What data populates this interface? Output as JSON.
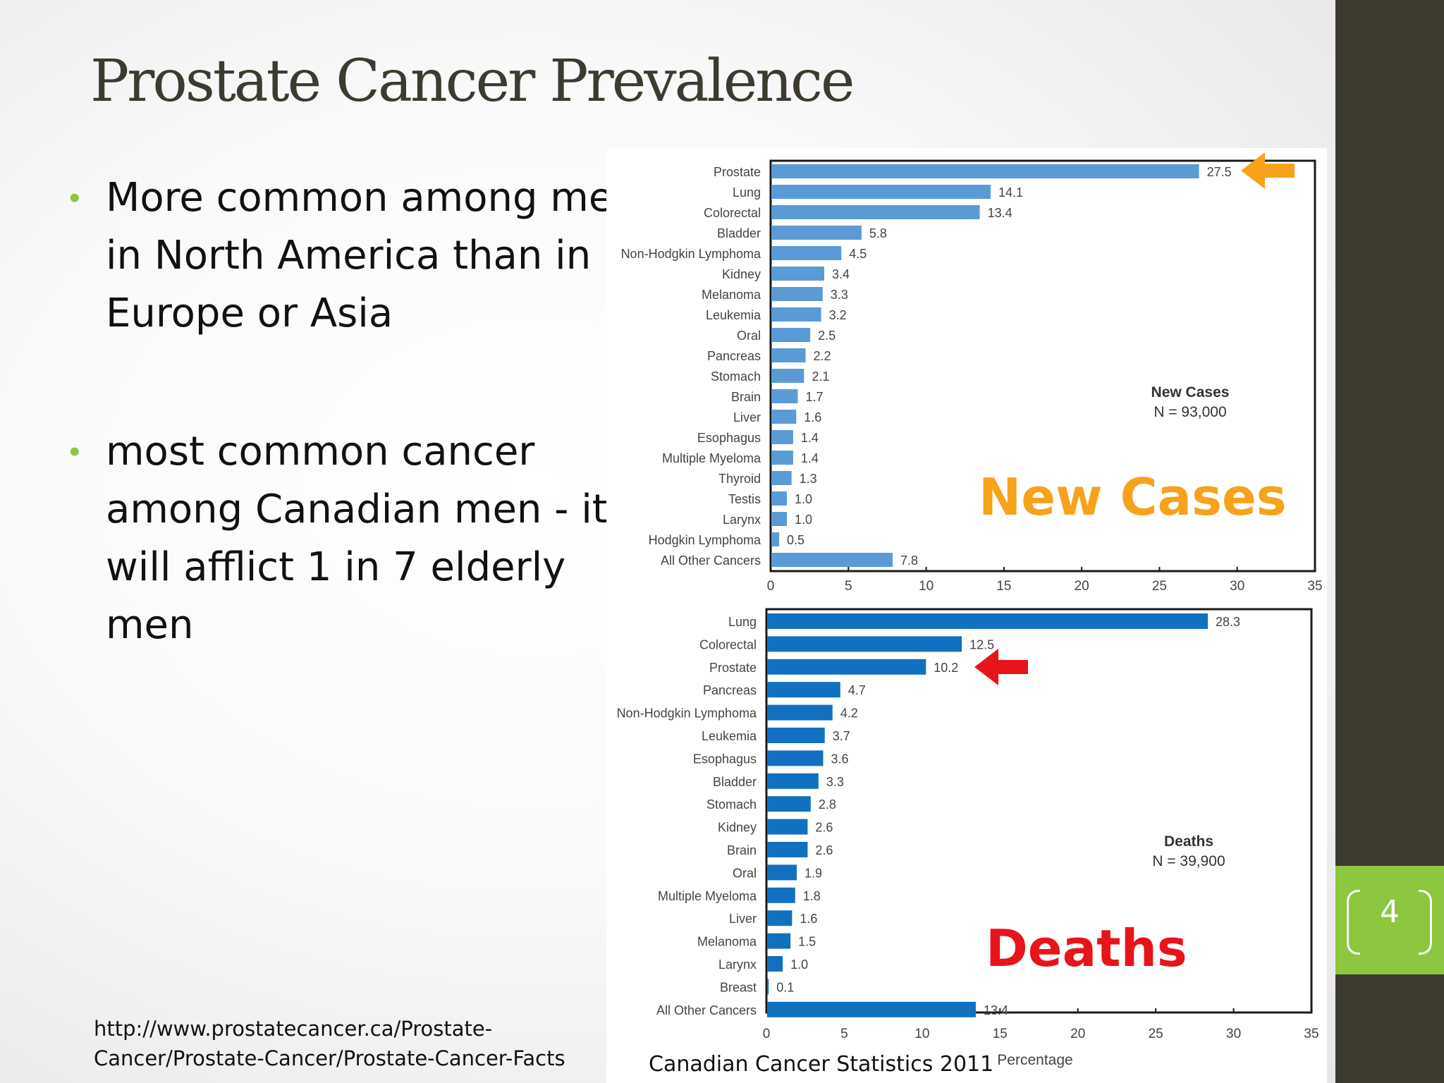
{
  "slide": {
    "title": "Prostate Cancer Prevalence",
    "bullets": [
      "More common among men in North America than in Europe or Asia",
      "most common cancer among Canadian men - it will afflict 1 in 7 elderly men"
    ],
    "source_url": "http://www.prostatecancer.ca/Prostate-Cancer/Prostate-Cancer/Prostate-Cancer-Facts",
    "caption": "Canadian Cancer Statistics 2011",
    "page_number": "4",
    "colors": {
      "accent_green": "#8dc63f",
      "sidebar": "#3d3a2f",
      "title": "#3d3a2f",
      "orange": "#f7a21b",
      "red": "#e8141b",
      "bar_top": "#5b9bd5",
      "bar_bottom": "#1270c0"
    },
    "icons": [
      "orange-arrow-icon",
      "red-arrow-icon"
    ]
  },
  "chart_data": [
    {
      "type": "bar",
      "orientation": "horizontal",
      "categories": [
        "Prostate",
        "Lung",
        "Colorectal",
        "Bladder",
        "Non-Hodgkin Lymphoma",
        "Kidney",
        "Melanoma",
        "Leukemia",
        "Oral",
        "Pancreas",
        "Stomach",
        "Brain",
        "Liver",
        "Esophagus",
        "Multiple Myeloma",
        "Thyroid",
        "Testis",
        "Larynx",
        "Hodgkin Lymphoma",
        "All Other Cancers"
      ],
      "values": [
        27.5,
        14.1,
        13.4,
        5.8,
        4.5,
        3.4,
        3.3,
        3.2,
        2.5,
        2.2,
        2.1,
        1.7,
        1.6,
        1.4,
        1.4,
        1.3,
        1.0,
        1.0,
        0.5,
        7.8
      ],
      "value_labels": [
        "27.5",
        "14.1",
        "13.4",
        "5.8",
        "4.5",
        "3.4",
        "3.3",
        "3.2",
        "2.5",
        "2.2",
        "2.1",
        "1.7",
        "1.6",
        "1.4",
        "1.4",
        "1.3",
        "1.0",
        "1.0",
        "0.5",
        "7.8"
      ],
      "xlim": [
        0,
        35
      ],
      "ticks": [
        "0",
        "5",
        "10",
        "15",
        "20",
        "25",
        "30",
        "35"
      ],
      "legend": [
        "New Cases",
        "N = 93,000"
      ],
      "overlay_label": "New Cases",
      "highlight": "Prostate"
    },
    {
      "type": "bar",
      "orientation": "horizontal",
      "categories": [
        "Lung",
        "Colorectal",
        "Prostate",
        "Pancreas",
        "Non-Hodgkin Lymphoma",
        "Leukemia",
        "Esophagus",
        "Bladder",
        "Stomach",
        "Kidney",
        "Brain",
        "Oral",
        "Multiple Myeloma",
        "Liver",
        "Melanoma",
        "Larynx",
        "Breast",
        "All Other Cancers"
      ],
      "values": [
        28.3,
        12.5,
        10.2,
        4.7,
        4.2,
        3.7,
        3.6,
        3.3,
        2.8,
        2.6,
        2.6,
        1.9,
        1.8,
        1.6,
        1.5,
        1.0,
        0.1,
        13.4
      ],
      "value_labels": [
        "28.3",
        "12.5",
        "10.2",
        "4.7",
        "4.2",
        "3.7",
        "3.6",
        "3.3",
        "2.8",
        "2.6",
        "2.6",
        "1.9",
        "1.8",
        "1.6",
        "1.5",
        "1.0",
        "0.1",
        "13.4"
      ],
      "xlim": [
        0,
        35
      ],
      "ticks": [
        "0",
        "5",
        "10",
        "15",
        "20",
        "25",
        "30",
        "35"
      ],
      "xlabel": "Percentage",
      "legend": [
        "Deaths",
        "N = 39,900"
      ],
      "overlay_label": "Deaths",
      "highlight": "Prostate"
    }
  ]
}
